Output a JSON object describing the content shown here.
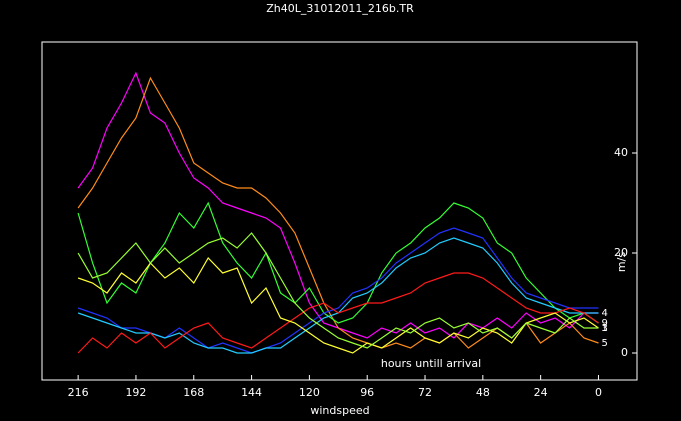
{
  "chart_data": {
    "type": "line",
    "title": "Zh40L_31012011_216b.TR",
    "xlabel": "windspeed",
    "ylabel": "m/s",
    "annotation": "hours untill arrival",
    "x": [
      216,
      210,
      204,
      198,
      192,
      186,
      180,
      174,
      168,
      162,
      156,
      150,
      144,
      138,
      132,
      126,
      120,
      114,
      108,
      102,
      96,
      90,
      84,
      78,
      72,
      66,
      60,
      54,
      48,
      42,
      36,
      30,
      24,
      18,
      12,
      6,
      0
    ],
    "xlim": [
      231,
      -16
    ],
    "xticks": [
      216,
      192,
      168,
      144,
      120,
      96,
      72,
      48,
      24,
      0
    ],
    "ylim": [
      -5.4,
      62.2
    ],
    "yticks": [
      0,
      20,
      40
    ],
    "series": [
      {
        "color": "#ff00ff",
        "values": [
          33,
          37,
          45,
          50,
          56,
          48,
          46,
          40,
          35,
          33,
          30,
          29,
          28,
          27,
          25,
          18,
          10,
          6,
          5,
          4,
          3,
          5,
          4,
          6,
          4,
          5,
          3,
          6,
          5,
          7,
          5,
          8,
          6,
          7,
          5,
          8,
          8
        ]
      },
      {
        "name": "5",
        "color": "#ff8c1a",
        "values": [
          29,
          33,
          38,
          43,
          47,
          55,
          50,
          45,
          38,
          36,
          34,
          33,
          33,
          31,
          28,
          24,
          17,
          10,
          5,
          3,
          2,
          1,
          2,
          1,
          3,
          2,
          4,
          1,
          3,
          5,
          3,
          6,
          2,
          4,
          6,
          3,
          2
        ]
      },
      {
        "name": "9",
        "color": "#33ff33",
        "values": [
          28,
          18,
          10,
          14,
          12,
          18,
          22,
          28,
          25,
          30,
          22,
          18,
          15,
          20,
          12,
          10,
          13,
          8,
          6,
          7,
          10,
          16,
          20,
          22,
          25,
          27,
          30,
          29,
          27,
          22,
          20,
          15,
          12,
          9,
          7,
          8,
          6
        ]
      },
      {
        "color": "#2233ff",
        "values": [
          9,
          8,
          7,
          5,
          5,
          4,
          3,
          5,
          3,
          1,
          2,
          1,
          0,
          1,
          2,
          4,
          6,
          8,
          9,
          12,
          13,
          15,
          18,
          20,
          22,
          24,
          25,
          24,
          23,
          19,
          15,
          12,
          11,
          10,
          9,
          9,
          9
        ]
      },
      {
        "name": "4",
        "color": "#22ccff",
        "values": [
          8,
          7,
          6,
          5,
          4,
          4,
          3,
          4,
          2,
          1,
          1,
          0,
          0,
          1,
          1,
          3,
          5,
          7,
          8,
          11,
          12,
          14,
          17,
          19,
          20,
          22,
          23,
          22,
          21,
          18,
          14,
          11,
          10,
          9,
          8,
          8,
          8
        ]
      },
      {
        "color": "#ff1a1a",
        "values": [
          0,
          3,
          1,
          4,
          2,
          4,
          1,
          3,
          5,
          6,
          3,
          2,
          1,
          3,
          5,
          7,
          9,
          10,
          8,
          9,
          10,
          10,
          11,
          12,
          14,
          15,
          16,
          16,
          15,
          13,
          11,
          9,
          8,
          8,
          9,
          8,
          6
        ]
      },
      {
        "name": "1",
        "color": "#ffff33",
        "values": [
          15,
          14,
          12,
          16,
          14,
          18,
          15,
          17,
          14,
          19,
          16,
          17,
          10,
          13,
          7,
          6,
          4,
          2,
          1,
          0,
          2,
          1,
          3,
          5,
          3,
          2,
          4,
          3,
          5,
          4,
          2,
          6,
          7,
          8,
          6,
          7,
          5
        ]
      },
      {
        "name": "3",
        "color": "#99ff33",
        "values": [
          20,
          15,
          16,
          19,
          22,
          18,
          21,
          18,
          20,
          22,
          23,
          21,
          24,
          20,
          15,
          10,
          7,
          5,
          3,
          2,
          1,
          3,
          5,
          4,
          6,
          7,
          5,
          6,
          4,
          5,
          3,
          6,
          5,
          4,
          7,
          5,
          5
        ]
      }
    ]
  }
}
